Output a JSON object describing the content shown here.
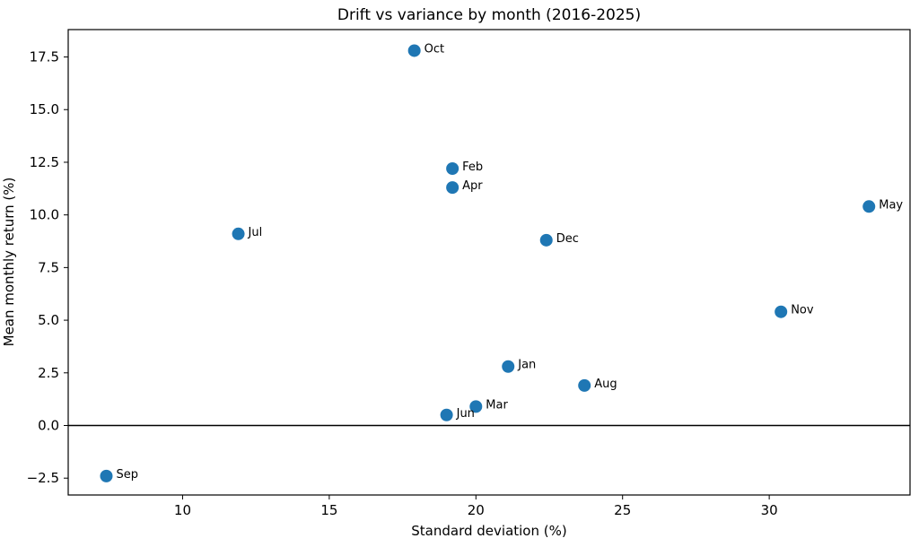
{
  "figure": {
    "title": "Drift vs variance by month (2016-2025)",
    "xlabel": "Standard deviation (%)",
    "ylabel": "Mean monthly return (%)"
  },
  "chart_data": {
    "type": "scatter",
    "title": "Drift vs variance by month (2016-2025)",
    "xlabel": "Standard deviation (%)",
    "ylabel": "Mean monthly return (%)",
    "xlim": [
      6.1,
      34.8
    ],
    "ylim": [
      -3.3,
      18.8
    ],
    "xticks": [
      10,
      15,
      20,
      25,
      30
    ],
    "yticks": [
      -2.5,
      0.0,
      2.5,
      5.0,
      7.5,
      10.0,
      12.5,
      15.0,
      17.5
    ],
    "grid": false,
    "legend": "none",
    "marker_color": "#1f77b4",
    "axis_color": "#000000",
    "zero_line": {
      "y": 0.0,
      "color": "#000000"
    },
    "points": [
      {
        "label": "Jan",
        "x": 21.1,
        "y": 2.8
      },
      {
        "label": "Feb",
        "x": 19.2,
        "y": 12.2
      },
      {
        "label": "Mar",
        "x": 20.0,
        "y": 0.9
      },
      {
        "label": "Apr",
        "x": 19.2,
        "y": 11.3
      },
      {
        "label": "May",
        "x": 33.4,
        "y": 10.4
      },
      {
        "label": "Jun",
        "x": 19.0,
        "y": 0.5
      },
      {
        "label": "Jul",
        "x": 11.9,
        "y": 9.1
      },
      {
        "label": "Aug",
        "x": 23.7,
        "y": 1.9
      },
      {
        "label": "Sep",
        "x": 7.4,
        "y": -2.4
      },
      {
        "label": "Oct",
        "x": 17.9,
        "y": 17.8
      },
      {
        "label": "Nov",
        "x": 30.4,
        "y": 5.4
      },
      {
        "label": "Dec",
        "x": 22.4,
        "y": 8.8
      }
    ]
  }
}
